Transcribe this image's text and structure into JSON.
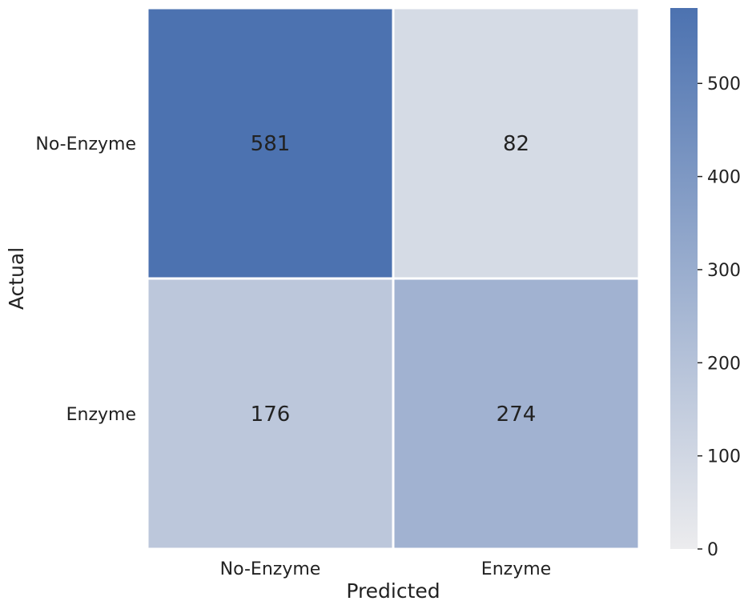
{
  "chart_data": {
    "type": "heatmap",
    "title": "",
    "xlabel": "Predicted",
    "ylabel": "Actual",
    "x_categories": [
      "No-Enzyme",
      "Enzyme"
    ],
    "y_categories": [
      "No-Enzyme",
      "Enzyme"
    ],
    "values": [
      [
        581,
        82
      ],
      [
        176,
        274
      ]
    ],
    "colorbar": {
      "min": 0,
      "max": 581,
      "ticks": [
        0,
        100,
        200,
        300,
        400,
        500
      ],
      "tick_labels": [
        "0",
        "100",
        "200",
        "300",
        "400",
        "500"
      ],
      "color_low": "#ececee",
      "color_high": "#4c72b0"
    },
    "cell_annotation_color": "#222222",
    "grid_line_color": "#ffffff"
  }
}
